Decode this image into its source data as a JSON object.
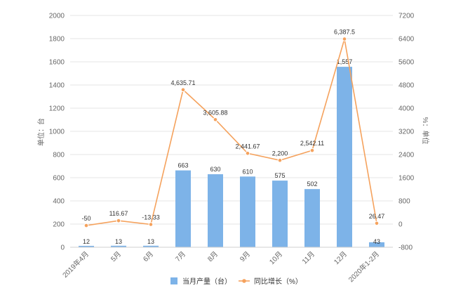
{
  "colors": {
    "bar": "#7db3e8",
    "line": "#f5a25d",
    "grid": "#e6e6e6"
  },
  "chart_data": {
    "type": "bar",
    "categories": [
      "2019年4月",
      "5月",
      "6月",
      "7月",
      "8月",
      "9月",
      "10月",
      "11月",
      "12月",
      "2020年1-2月"
    ],
    "series": [
      {
        "name": "当月产量（台）",
        "type": "bar",
        "axis": "left",
        "values": [
          12,
          13,
          13,
          663,
          630,
          610,
          575,
          502,
          1557,
          43
        ],
        "labels": [
          "12",
          "13",
          "13",
          "663",
          "630",
          "610",
          "575",
          "502",
          "1,557",
          "43"
        ]
      },
      {
        "name": "同比增长（%）",
        "type": "line",
        "axis": "right",
        "values": [
          -50,
          116.67,
          -13.33,
          4635.71,
          3605.88,
          2441.67,
          2200,
          2542.11,
          6387.5,
          26.47
        ],
        "labels": [
          "-50",
          "116.67",
          "-13.33",
          "4,635.71",
          "3,605.88",
          "2,441.67",
          "2,200",
          "2,542.11",
          "6,387.5",
          "26.47"
        ]
      }
    ],
    "ylabel": "单位：台",
    "y2label": "%：单位",
    "ylim": [
      0,
      2000
    ],
    "yticks": [
      "0",
      "200",
      "400",
      "600",
      "800",
      "1000",
      "1200",
      "1400",
      "1600",
      "1800",
      "2000"
    ],
    "y2lim": [
      -800,
      7200
    ],
    "y2ticks": [
      "-800",
      "0",
      "800",
      "1600",
      "2400",
      "3200",
      "4000",
      "4800",
      "5600",
      "6400",
      "7200"
    ],
    "grid": true,
    "legend_position": "bottom"
  }
}
